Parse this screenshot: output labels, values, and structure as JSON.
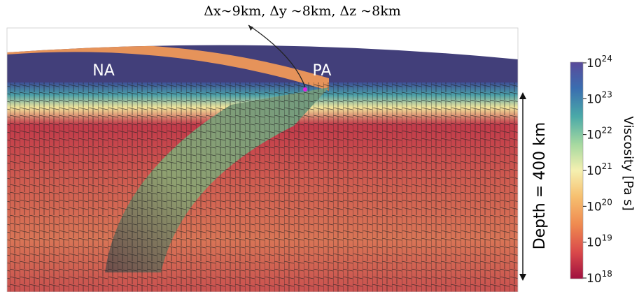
{
  "annotation": "Δx~9km, Δy ~8km, Δz ~8km",
  "labels": {
    "left_plate": "NA",
    "right_plate": "PA",
    "depth": "Depth = 400 km"
  },
  "colorbar": {
    "title": "Viscosity [Pa s]",
    "ticks": [
      {
        "base": "10",
        "exponent": "24"
      },
      {
        "base": "10",
        "exponent": "23"
      },
      {
        "base": "10",
        "exponent": "22"
      },
      {
        "base": "10",
        "exponent": "21"
      },
      {
        "base": "10",
        "exponent": "20"
      },
      {
        "base": "10",
        "exponent": "19"
      },
      {
        "base": "10",
        "exponent": "18"
      }
    ]
  }
}
